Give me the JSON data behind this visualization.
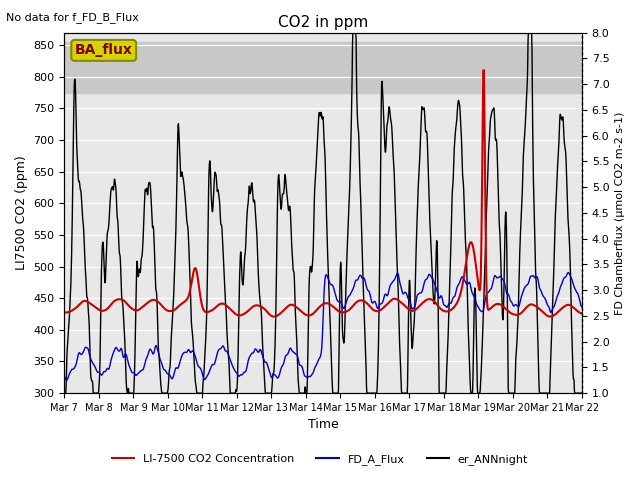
{
  "title": "CO2 in ppm",
  "top_left_text": "No data for f_FD_B_Flux",
  "box_label": "BA_flux",
  "xlabel": "Time",
  "ylabel_left": "LI7500 CO2 (ppm)",
  "ylabel_right": "FD Chamberflux (μmol CO2 m-2 s-1)",
  "ylim_left": [
    300,
    870
  ],
  "ylim_right": [
    1.0,
    8.0
  ],
  "yticks_left": [
    300,
    350,
    400,
    450,
    500,
    550,
    600,
    650,
    700,
    750,
    800,
    850
  ],
  "yticks_right": [
    1.0,
    1.5,
    2.0,
    2.5,
    3.0,
    3.5,
    4.0,
    4.5,
    5.0,
    5.5,
    6.0,
    6.5,
    7.0,
    7.5,
    8.0
  ],
  "xtick_labels": [
    "Mar 7",
    "Mar 8",
    "Mar 9",
    "Mar 10",
    "Mar 11",
    "Mar 12",
    "Mar 13",
    "Mar 14",
    "Mar 15",
    "Mar 16",
    "Mar 17",
    "Mar 18",
    "Mar 19",
    "Mar 20",
    "Mar 21",
    "Mar 22"
  ],
  "legend_entries": [
    {
      "label": "LI-7500 CO2 Concentration",
      "color": "#cc0000",
      "lw": 1.5
    },
    {
      "label": "FD_A_Flux",
      "color": "#0000cc",
      "lw": 1.0
    },
    {
      "label": "er_ANNnight",
      "color": "#000000",
      "lw": 1.0
    }
  ],
  "shaded_band_ylim": [
    775,
    855
  ],
  "facecolor": "#e8e8e8",
  "box_color": "#d4d400",
  "box_edge_color": "#888800",
  "box_text_color": "#800000"
}
